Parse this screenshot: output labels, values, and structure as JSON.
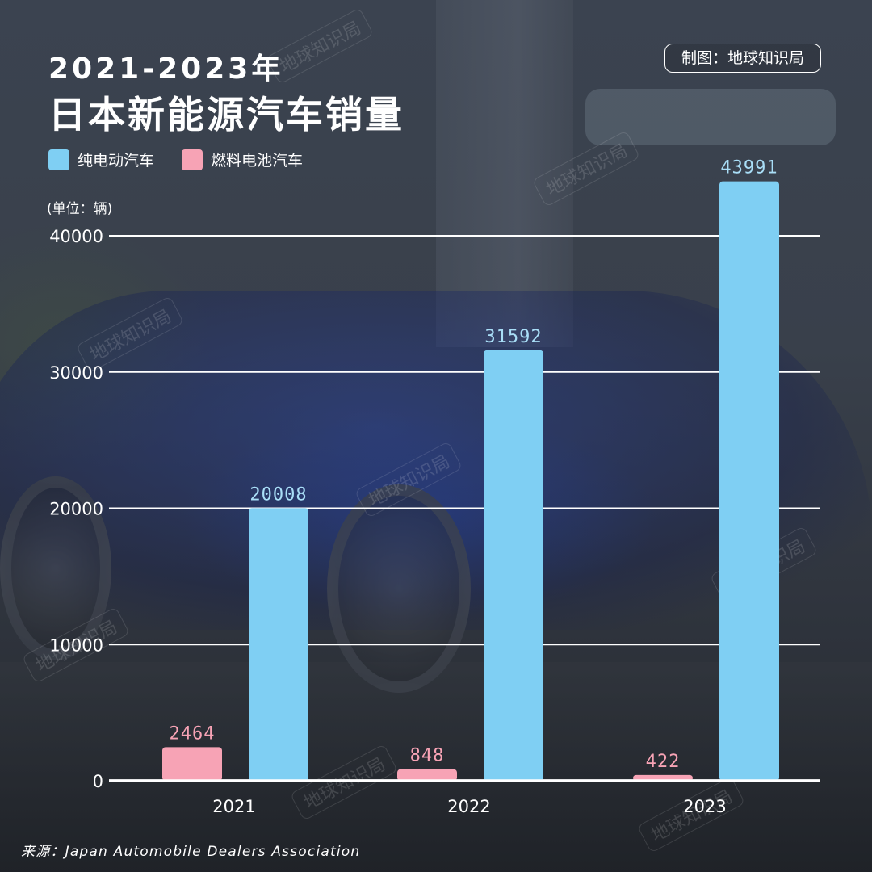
{
  "title": {
    "line1": "2021-2023年",
    "line2": "日本新能源汽车销量"
  },
  "credit": "制图：地球知识局",
  "watermark_text": "地球知识局",
  "unit": "(单位：辆)",
  "source": "来源：Japan Automobile Dealers Association",
  "colors": {
    "bev": "#7fcff3",
    "fcev": "#f7a3b5",
    "bev_label": "#a9def7",
    "fcev_label": "#f7a3b5"
  },
  "chart_data": {
    "type": "bar",
    "title": "2021-2023年 日本新能源汽车销量",
    "ylabel": "(单位：辆)",
    "categories": [
      "2021",
      "2022",
      "2023"
    ],
    "series": [
      {
        "name": "燃料电池汽车",
        "values": [
          2464,
          848,
          422
        ]
      },
      {
        "name": "纯电动汽车",
        "values": [
          20008,
          31592,
          43991
        ]
      }
    ],
    "yticks": [
      0,
      10000,
      20000,
      30000,
      40000
    ],
    "ylim": [
      0,
      40000
    ],
    "grid": true,
    "legend": "top-left"
  }
}
